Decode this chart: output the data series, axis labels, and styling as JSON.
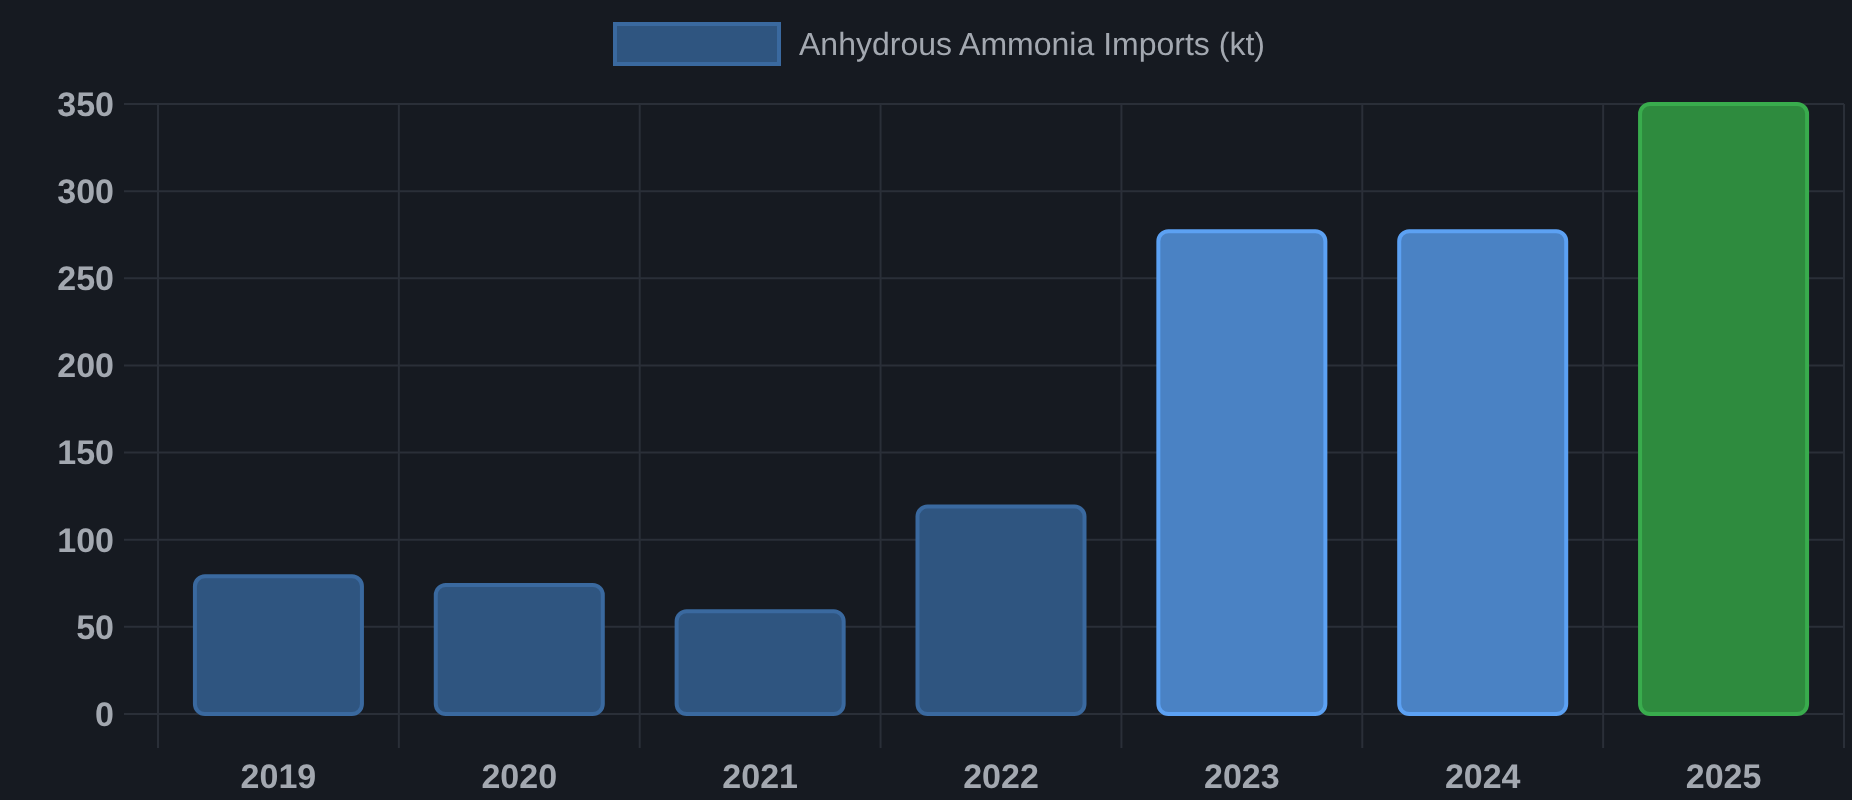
{
  "chart_data": {
    "type": "bar",
    "categories": [
      "2019",
      "2020",
      "2021",
      "2022",
      "2023",
      "2024",
      "2025"
    ],
    "series": [
      {
        "name": "Anhydrous Ammonia Imports (kt)",
        "color": "#2f5580",
        "colors": [
          "#2f5580",
          "#2f5580",
          "#2f5580",
          "#2f5580",
          "#4a82c4",
          "#4a82c4",
          "#2e8b3e"
        ],
        "values": [
          79,
          74,
          59,
          119,
          277,
          277,
          350
        ]
      }
    ],
    "ylim": [
      0,
      350
    ],
    "yticks": [
      0,
      50,
      100,
      150,
      200,
      250,
      300,
      350
    ],
    "grid": true,
    "legend": "top"
  }
}
